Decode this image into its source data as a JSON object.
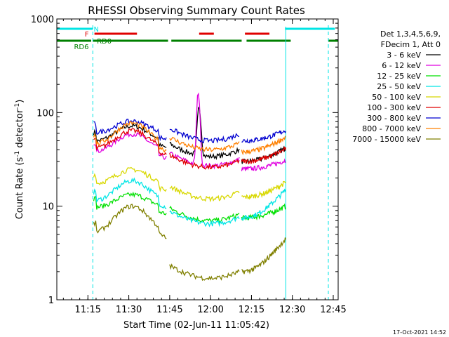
{
  "chart_data": {
    "type": "line",
    "title": "RHESSI Observing Summary Count Rates",
    "xlabel": "Start Time (02-Jun-11 11:05:42)",
    "ylabel_main": "Count Rate (s",
    "ylabel_sup": "-1",
    "ylabel_rest": " detector",
    "ylabel_sup2": "-1",
    "ylabel_close": ")",
    "yscale": "log",
    "ylim": [
      1,
      1000
    ],
    "xlim_minutes": [
      11.06,
      12.78
    ],
    "x_ticks": [
      "11:15",
      "11:30",
      "11:45",
      "12:00",
      "12:15",
      "12:30",
      "12:45"
    ],
    "x_tick_values": [
      11.25,
      11.5,
      11.75,
      12.0,
      12.25,
      12.5,
      12.75
    ],
    "y_ticks": [
      "1",
      "10",
      "100",
      "1000"
    ],
    "y_tick_values": [
      1,
      10,
      100,
      1000
    ],
    "legend_header": [
      "Det 1,3,4,5,6,9,",
      "FDecim 1, Att 0"
    ],
    "timestamp": "17-Oct-2021 14:52",
    "flags": [
      {
        "label": "N",
        "color": "#00e5e5",
        "segments": [
          [
            11.06,
            11.28
          ],
          [
            12.455,
            12.76
          ]
        ]
      },
      {
        "label": "F",
        "color": "#e00000",
        "segments": [
          [
            11.29,
            11.55
          ],
          [
            11.93,
            12.02
          ],
          [
            12.21,
            12.36
          ]
        ]
      },
      {
        "label": "RD0",
        "color": "#008000",
        "segments": [
          [
            11.28,
            11.74
          ],
          [
            11.76,
            12.19
          ],
          [
            12.22,
            12.49
          ],
          [
            12.72,
            12.78
          ]
        ]
      },
      {
        "label": "RD6",
        "color": "#008000",
        "segments": [
          [
            11.06,
            11.27
          ]
        ]
      }
    ],
    "vlines_dashed": [
      11.28,
      12.72
    ],
    "vlines_solid": [
      11.06,
      12.46
    ],
    "series": [
      {
        "name": "3 - 6 keV",
        "color": "#000000"
      },
      {
        "name": "6 - 12 keV",
        "color": "#e000e0"
      },
      {
        "name": "12 - 25 keV",
        "color": "#00e000"
      },
      {
        "name": "25 - 50 keV",
        "color": "#00e5e5"
      },
      {
        "name": "50 - 100 keV",
        "color": "#d8d800"
      },
      {
        "name": "100 - 300 keV",
        "color": "#e00000"
      },
      {
        "name": "300 - 800 keV",
        "color": "#0000d0"
      },
      {
        "name": "800 - 7000 keV",
        "color": "#ff8000"
      },
      {
        "name": "7000 - 15000 keV",
        "color": "#808000"
      }
    ]
  }
}
